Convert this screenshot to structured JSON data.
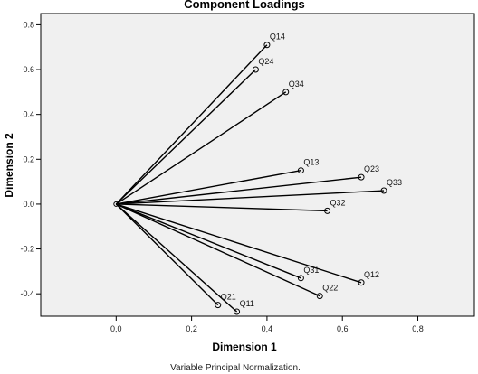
{
  "chart_data": {
    "type": "scatter",
    "title": "Component Loadings",
    "xlabel": "Dimension 1",
    "ylabel": "Dimension 2",
    "xlim": [
      -0.2,
      0.95
    ],
    "ylim": [
      -0.5,
      0.85
    ],
    "xticks": [
      "0,0",
      "0,2",
      "0,4",
      "0,6",
      "0,8"
    ],
    "xtick_values": [
      0.0,
      0.2,
      0.4,
      0.6,
      0.8
    ],
    "yticks": [
      "0.8",
      "0.6",
      "0.4",
      "0.2",
      "0.0",
      "-0.2",
      "-0.4"
    ],
    "ytick_values": [
      0.8,
      0.6,
      0.4,
      0.2,
      0.0,
      -0.2,
      -0.4
    ],
    "origin": [
      0.0,
      0.0
    ],
    "vectors_from_origin": true,
    "grid": false,
    "plot_background": "#f0f0f0",
    "points": [
      {
        "label": "Q14",
        "x": 0.4,
        "y": 0.71
      },
      {
        "label": "Q24",
        "x": 0.37,
        "y": 0.6
      },
      {
        "label": "Q34",
        "x": 0.45,
        "y": 0.5
      },
      {
        "label": "Q13",
        "x": 0.49,
        "y": 0.15
      },
      {
        "label": "Q23",
        "x": 0.65,
        "y": 0.12
      },
      {
        "label": "Q33",
        "x": 0.71,
        "y": 0.06
      },
      {
        "label": "Q32",
        "x": 0.56,
        "y": -0.03
      },
      {
        "label": "Q31",
        "x": 0.49,
        "y": -0.33
      },
      {
        "label": "Q12",
        "x": 0.65,
        "y": -0.35
      },
      {
        "label": "Q22",
        "x": 0.54,
        "y": -0.41
      },
      {
        "label": "Q21",
        "x": 0.27,
        "y": -0.45
      },
      {
        "label": "Q11",
        "x": 0.32,
        "y": -0.48
      }
    ]
  },
  "footnote": "Variable Principal Normalization."
}
